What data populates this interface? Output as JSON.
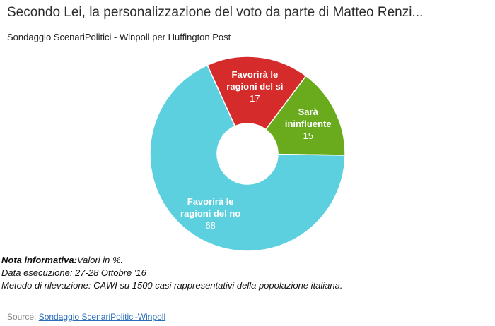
{
  "title": "Secondo Lei, la personalizzazione del voto da parte di Matteo Renzi...",
  "subtitle": "Sondaggio ScenariPolitici - Winpoll per Huffington Post",
  "chart_data": {
    "type": "pie",
    "donut": true,
    "unit": "%",
    "slices": [
      {
        "label_lines": [
          "Favorirà le",
          "ragioni del sì"
        ],
        "value": 17,
        "color": "#d52b2b"
      },
      {
        "label_lines": [
          "Sarà",
          "ininfluente"
        ],
        "value": 15,
        "color": "#6aab1e"
      },
      {
        "label_lines": [
          "Favorirà le",
          "ragioni del no"
        ],
        "value": 68,
        "color": "#5cd0de"
      }
    ]
  },
  "notes": {
    "nota_label": "Nota informativa:",
    "nota_text": "Valori in %.",
    "data_line": "Data esecuzione: 27-28 Ottobre '16",
    "metodo_line": "Metodo di rilevazione: CAWI su 1500 casi rappresentativi della popolazione italiana."
  },
  "source": {
    "label": "Source: ",
    "link_text": "Sondaggio ScenariPolitici-Winpoll"
  }
}
